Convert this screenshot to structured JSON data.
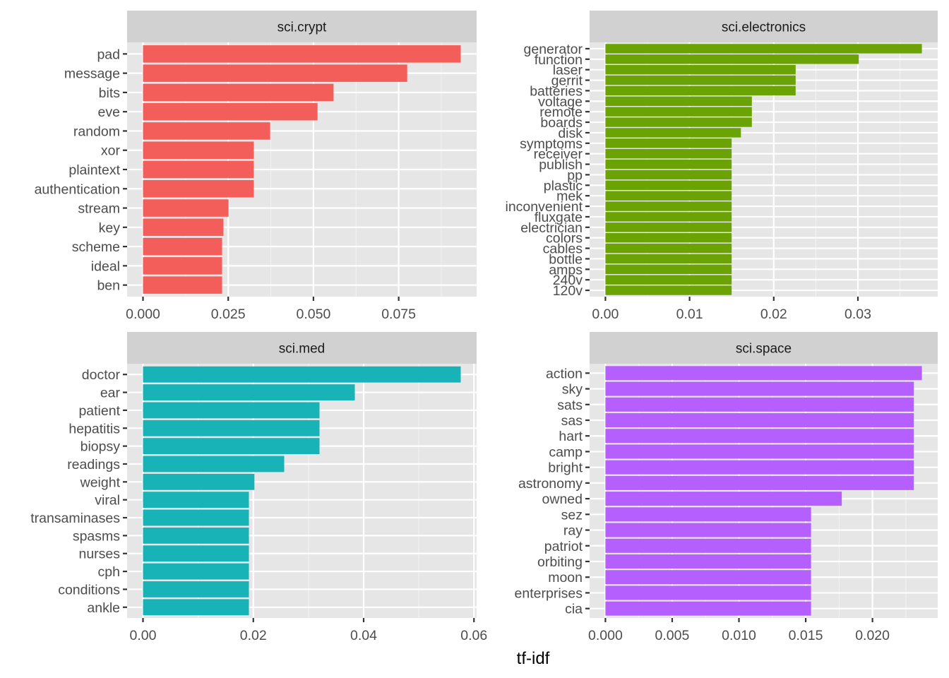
{
  "chart_data": {
    "type": "bar",
    "orientation": "horizontal",
    "layout": "facet 2x2, free scales",
    "xlabel": "tf-idf",
    "ylabel": "",
    "grid": true,
    "legend": "none",
    "panels": [
      {
        "title": "sci.crypt",
        "color": "#F35E5A",
        "categories": [
          "pad",
          "message",
          "bits",
          "eve",
          "random",
          "xor",
          "plaintext",
          "authentication",
          "stream",
          "key",
          "scheme",
          "ideal",
          "ben"
        ],
        "values": [
          0.0932,
          0.0775,
          0.0559,
          0.0512,
          0.0373,
          0.0325,
          0.0325,
          0.0325,
          0.0251,
          0.0236,
          0.0232,
          0.0232,
          0.0232
        ],
        "xticks": [
          0,
          0.025,
          0.05,
          0.075
        ],
        "xtick_labels": [
          "0.000",
          "0.025",
          "0.050",
          "0.075"
        ],
        "xlim": [
          -0.00466,
          0.09786
        ]
      },
      {
        "title": "sci.electronics",
        "color": "#6BA304",
        "categories": [
          "generator",
          "function",
          "laser",
          "gerrit",
          "batteries",
          "voltage",
          "remote",
          "boards",
          "disk",
          "symptoms",
          "receiver",
          "publish",
          "pp",
          "plastic",
          "mek",
          "inconvenient",
          "fluxgate",
          "electrician",
          "colors",
          "cables",
          "bottle",
          "amps",
          "240v",
          "120v"
        ],
        "values": [
          0.0376,
          0.0301,
          0.0226,
          0.0226,
          0.0226,
          0.0174,
          0.0174,
          0.0174,
          0.0161,
          0.015,
          0.015,
          0.015,
          0.015,
          0.015,
          0.015,
          0.015,
          0.015,
          0.015,
          0.015,
          0.015,
          0.015,
          0.015,
          0.015,
          0.015
        ],
        "xticks": [
          0,
          0.01,
          0.02,
          0.03
        ],
        "xtick_labels": [
          "0.00",
          "0.01",
          "0.02",
          "0.03"
        ],
        "xlim": [
          -0.00188,
          0.03948
        ]
      },
      {
        "title": "sci.med",
        "color": "#17B3B7",
        "categories": [
          "doctor",
          "ear",
          "patient",
          "hepatitis",
          "biopsy",
          "readings",
          "weight",
          "viral",
          "transaminases",
          "spasms",
          "nurses",
          "cph",
          "conditions",
          "ankle"
        ],
        "values": [
          0.0576,
          0.0384,
          0.032,
          0.032,
          0.032,
          0.0256,
          0.0202,
          0.0192,
          0.0192,
          0.0192,
          0.0192,
          0.0192,
          0.0192,
          0.0192
        ],
        "xticks": [
          0,
          0.02,
          0.04,
          0.06
        ],
        "xtick_labels": [
          "0.00",
          "0.02",
          "0.04",
          "0.06"
        ],
        "xlim": [
          -0.00288,
          0.06048
        ]
      },
      {
        "title": "sci.space",
        "color": "#B55FFF",
        "categories": [
          "action",
          "sky",
          "sats",
          "sas",
          "hart",
          "camp",
          "bright",
          "astronomy",
          "owned",
          "sez",
          "ray",
          "patriot",
          "orbiting",
          "moon",
          "enterprises",
          "cia"
        ],
        "values": [
          0.0237,
          0.0231,
          0.0231,
          0.0231,
          0.0231,
          0.0231,
          0.0231,
          0.0231,
          0.0177,
          0.0154,
          0.0154,
          0.0154,
          0.0154,
          0.0154,
          0.0154,
          0.0154
        ],
        "xticks": [
          0,
          0.005,
          0.01,
          0.015,
          0.02
        ],
        "xtick_labels": [
          "0.000",
          "0.005",
          "0.010",
          "0.015",
          "0.020"
        ],
        "xlim": [
          -0.001185,
          0.024885
        ]
      }
    ]
  }
}
